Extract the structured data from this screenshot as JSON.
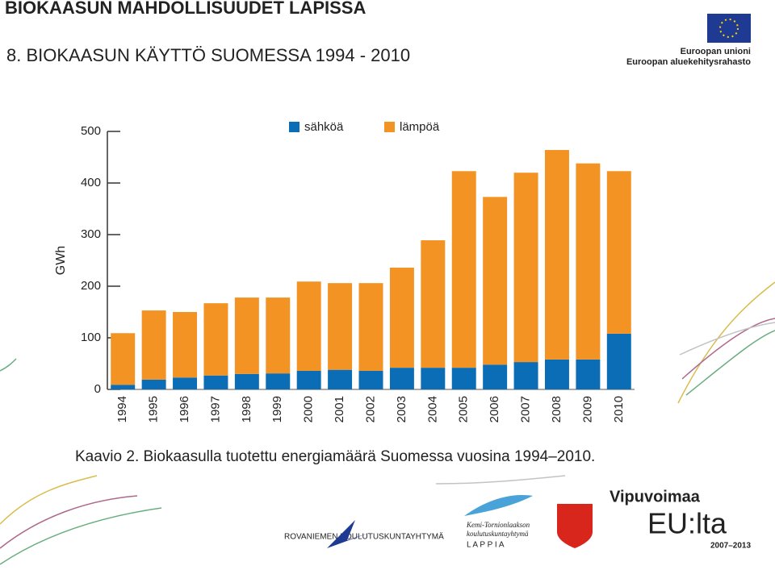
{
  "header": {
    "title": "BIOKAASUN MAHDOLLISUUDET LAPISSA",
    "subtitle": "8. BIOKAASUN KÄYTTÖ SUOMESSA 1994 - 2010",
    "eu_line1": "Euroopan unioni",
    "eu_line2": "Euroopan aluekehitysrahasto"
  },
  "footer": {
    "rovaniemi": "ROVANIEMEN KOULUTUSKUNTAYHTYMÄ",
    "kemi_line1": "Kemi-Tornionlaakson",
    "kemi_line2": "koulutuskuntayhtymä",
    "lappia": "L A P P I A",
    "vipuvoimaa": "Vipuvoimaa",
    "eulta": "EU:lta",
    "years": "2007–2013"
  },
  "chart_data": {
    "type": "stacked_bar",
    "y_label": "GWh",
    "caption": "Kaavio 2. Biokaasulla tuotettu energiamäärä Suomessa vuosina 1994–2010.",
    "categories": [
      "1994",
      "1995",
      "1996",
      "1997",
      "1998",
      "1999",
      "2000",
      "2001",
      "2002",
      "2003",
      "2004",
      "2005",
      "2006",
      "2007",
      "2008",
      "2009",
      "2010"
    ],
    "series": [
      {
        "name": "sähköä",
        "color": "#0a6db5",
        "values": [
          9,
          19,
          23,
          27,
          30,
          31,
          36,
          38,
          36,
          42,
          42,
          42,
          48,
          53,
          58,
          58,
          108
        ]
      },
      {
        "name": "lämpöä",
        "color": "#f39323",
        "values": [
          100,
          134,
          127,
          140,
          148,
          147,
          173,
          168,
          170,
          194,
          247,
          381,
          325,
          367,
          406,
          380,
          315
        ]
      }
    ],
    "ylim": [
      0,
      500
    ],
    "yticks": [
      0,
      100,
      200,
      300,
      400,
      500
    ]
  }
}
